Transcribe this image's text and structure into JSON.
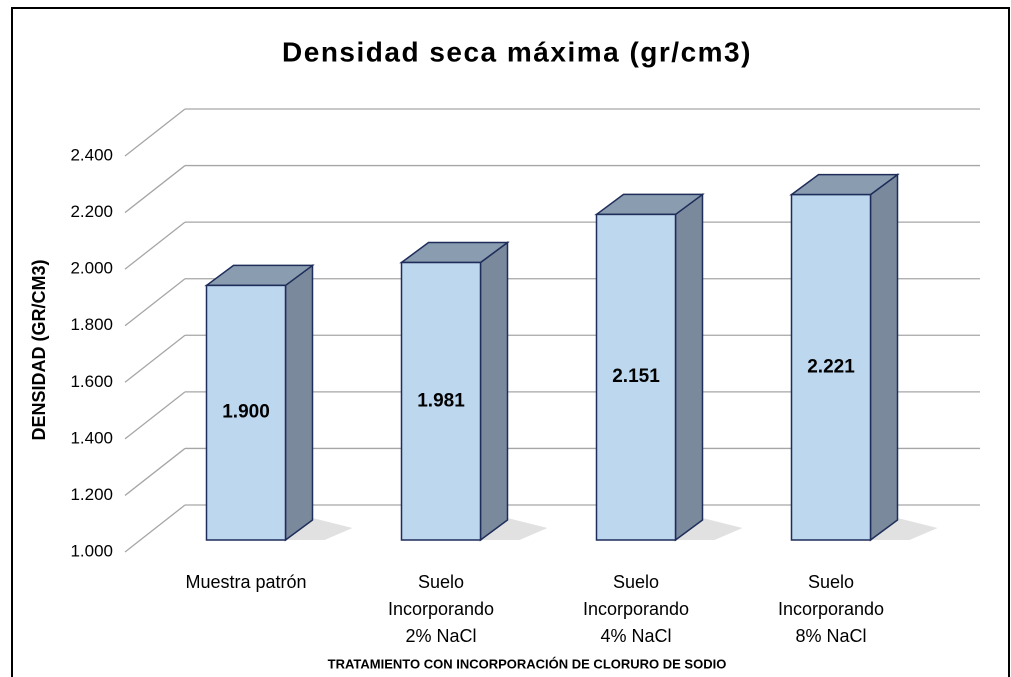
{
  "chart_data": {
    "type": "bar3d",
    "title": "Densidad seca máxima (gr/cm3)",
    "y_label": "DENSIDAD  (GR/CM3)",
    "x_label": "TRATAMIENTO CON INCORPORACIÓN DE CLORURO DE SODIO",
    "categories": [
      [
        "Muestra patrón"
      ],
      [
        "Suelo",
        "Incorporando",
        "2% NaCl"
      ],
      [
        "Suelo",
        "Incorporando",
        "4% NaCl"
      ],
      [
        "Suelo",
        "Incorporando",
        "8% NaCl"
      ]
    ],
    "values": [
      1.9,
      1.981,
      2.151,
      2.221
    ],
    "value_labels": [
      "1.900",
      "1.981",
      "2.151",
      "2.221"
    ],
    "color": "#bdd7ee",
    "ylim": [
      1.0,
      2.4
    ],
    "yticks": [
      {
        "value": 1.0,
        "label": "1.000"
      },
      {
        "value": 1.2,
        "label": "1.200"
      },
      {
        "value": 1.4,
        "label": "1.400"
      },
      {
        "value": 1.6,
        "label": "1.600"
      },
      {
        "value": 1.8,
        "label": "1.800"
      },
      {
        "value": 2.0,
        "label": "2.000"
      },
      {
        "value": 2.2,
        "label": "2.200"
      },
      {
        "value": 2.4,
        "label": "2.400"
      }
    ],
    "grid": true
  }
}
